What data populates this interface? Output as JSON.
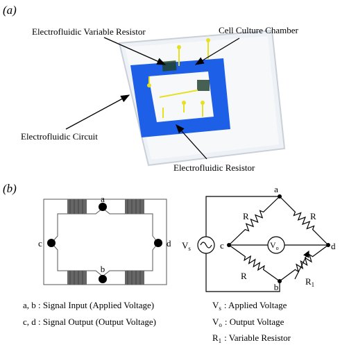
{
  "panel_a": {
    "label": "(a)",
    "callouts": [
      "Electrofluidic Variable Resistor",
      "Cell Culture Chamber",
      "Electrofluidic Circuit",
      "Electrofluidic Resistor"
    ]
  },
  "panel_b": {
    "label": "(b)",
    "circuit_nodes": [
      "a",
      "b",
      "c",
      "d"
    ],
    "bridge_nodes": [
      "a",
      "b",
      "c",
      "d"
    ],
    "bridge_resistors": [
      "R",
      "R",
      "R"
    ],
    "source": {
      "main": "V",
      "sub": "s"
    },
    "meter": {
      "main": "V",
      "sub": "o"
    },
    "variable_resistor": {
      "main": "R",
      "sub": "1"
    },
    "legend_left": [
      "a, b : Signal Input (Applied Voltage)",
      "c, d : Signal Output (Output Voltage)"
    ],
    "legend_right": [
      {
        "main": "V",
        "sub": "s",
        "text": ": Applied Voltage"
      },
      {
        "main": "V",
        "sub": "o",
        "text": ": Output Voltage"
      },
      {
        "main": "R",
        "sub": "1",
        "text": ": Variable Resistor"
      }
    ]
  }
}
